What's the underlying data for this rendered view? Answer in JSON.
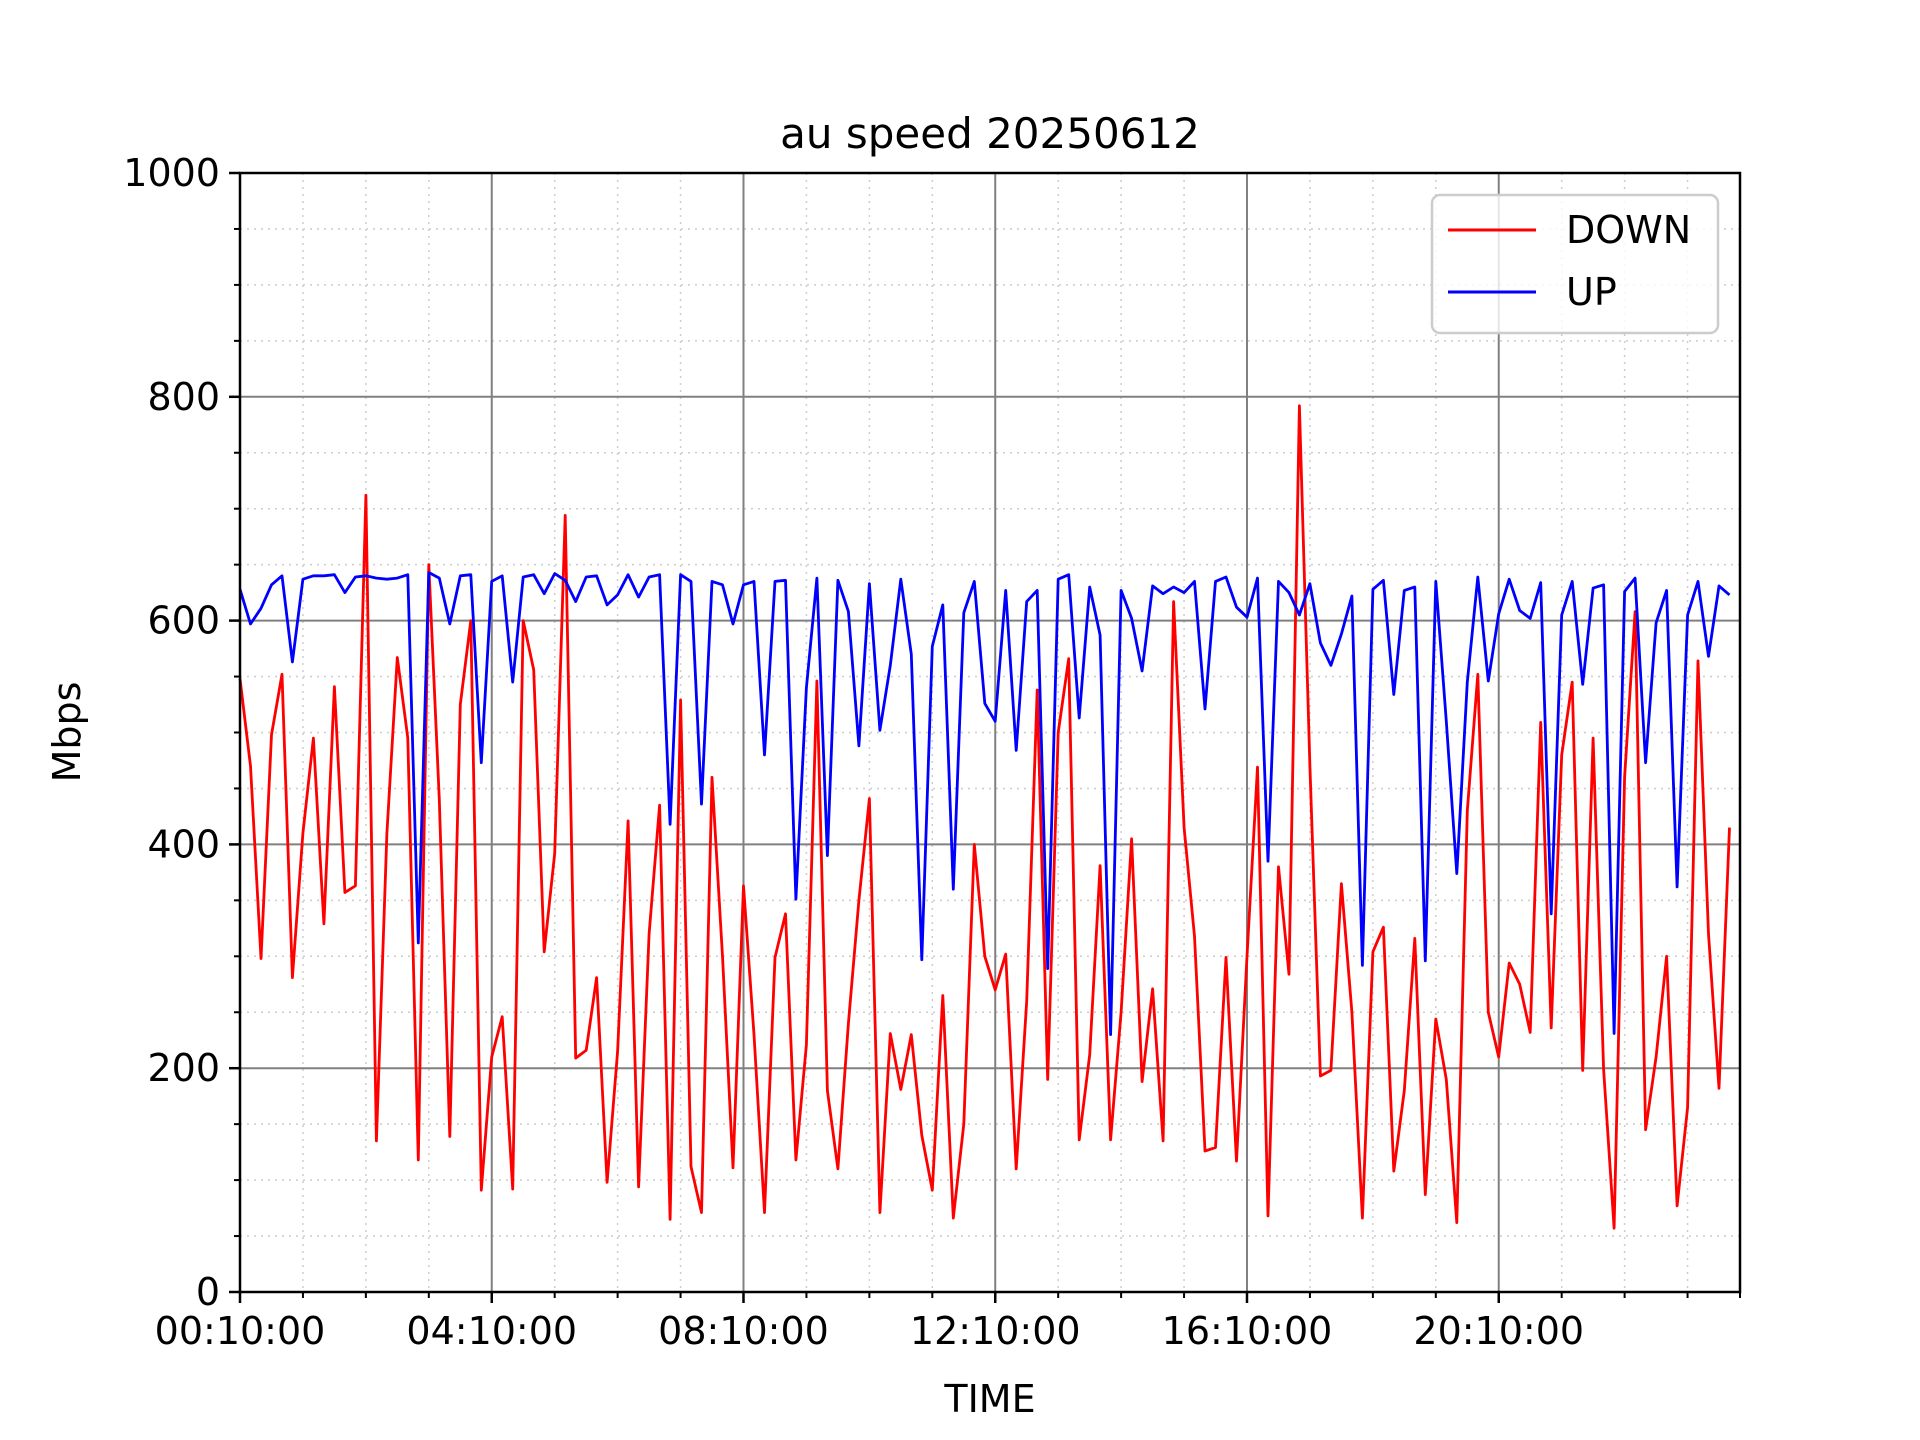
{
  "chart_data": {
    "type": "line",
    "title": "au speed 20250612",
    "xlabel": "TIME",
    "ylabel": "Mbps",
    "ylim": [
      0,
      1000
    ],
    "yticks": [
      0,
      200,
      400,
      600,
      800,
      1000
    ],
    "x_start": "00:10:00",
    "x_end": "24:00:00",
    "x_step_minutes": 10,
    "xticks": [
      "00:10:00",
      "04:10:00",
      "08:10:00",
      "12:10:00",
      "16:10:00",
      "20:10:00"
    ],
    "grid": true,
    "legend_position": "top-right",
    "series": [
      {
        "name": "DOWN",
        "color": "#ff0000",
        "values": [
          548,
          470,
          298,
          498,
          552,
          281,
          410,
          495,
          329,
          541,
          357,
          363,
          712,
          135,
          410,
          567,
          495,
          118,
          650,
          440,
          139,
          525,
          600,
          91,
          210,
          246,
          92,
          600,
          556,
          304,
          392,
          694,
          209,
          216,
          281,
          98,
          215,
          421,
          94,
          320,
          435,
          65,
          529,
          112,
          71,
          460,
          300,
          111,
          363,
          230,
          71,
          299,
          338,
          118,
          221,
          546,
          180,
          110,
          240,
          350,
          441,
          71,
          231,
          181,
          230,
          140,
          91,
          265,
          66,
          150,
          400,
          300,
          270,
          302,
          110,
          260,
          538,
          190,
          500,
          566,
          136,
          212,
          381,
          136,
          250,
          405,
          188,
          271,
          135,
          617,
          415,
          318,
          126,
          129,
          299,
          117,
          300,
          469,
          68,
          380,
          284,
          792,
          470,
          193,
          198,
          365,
          250,
          66,
          304,
          326,
          108,
          180,
          316,
          87,
          244,
          190,
          62,
          430,
          552,
          250,
          210,
          294,
          275,
          232,
          509,
          236,
          480,
          545,
          198,
          495,
          199,
          57,
          460,
          608,
          145,
          210,
          300,
          77,
          165,
          564,
          320,
          182,
          415
        ]
      },
      {
        "name": "UP",
        "color": "#0000ff",
        "values": [
          628,
          597,
          611,
          632,
          640,
          563,
          637,
          640,
          640,
          641,
          625,
          639,
          640,
          638,
          637,
          638,
          641,
          312,
          643,
          638,
          597,
          640,
          641,
          473,
          635,
          640,
          545,
          639,
          641,
          624,
          642,
          636,
          617,
          639,
          640,
          614,
          623,
          641,
          621,
          639,
          641,
          418,
          641,
          635,
          436,
          635,
          632,
          597,
          632,
          635,
          480,
          635,
          636,
          351,
          540,
          638,
          390,
          636,
          608,
          488,
          633,
          502,
          560,
          637,
          570,
          297,
          577,
          614,
          360,
          607,
          635,
          526,
          510,
          627,
          484,
          617,
          627,
          289,
          637,
          641,
          513,
          630,
          587,
          230,
          627,
          602,
          555,
          631,
          624,
          630,
          625,
          635,
          521,
          635,
          639,
          612,
          603,
          638,
          385,
          635,
          625,
          605,
          633,
          580,
          560,
          588,
          622,
          292,
          628,
          636,
          534,
          627,
          630,
          296,
          635,
          510,
          374,
          545,
          639,
          546,
          606,
          637,
          609,
          602,
          634,
          338,
          605,
          635,
          543,
          629,
          632,
          231,
          626,
          638,
          473,
          598,
          627,
          362,
          605,
          635,
          568,
          631,
          623
        ]
      }
    ]
  }
}
